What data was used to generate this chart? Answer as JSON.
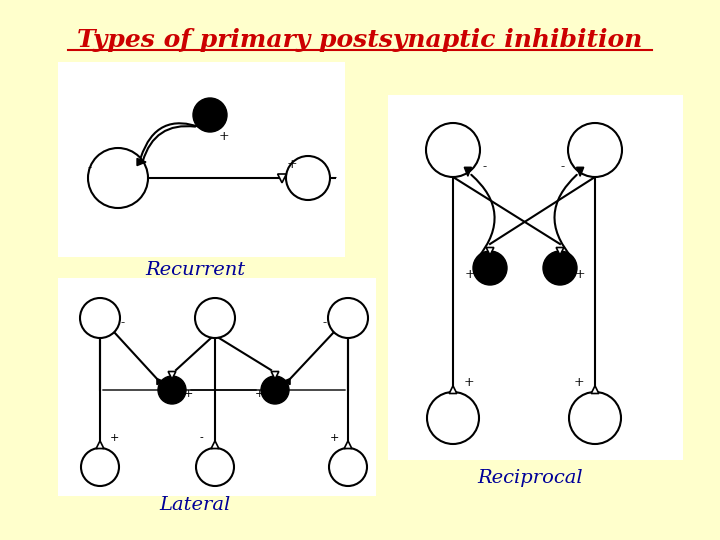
{
  "title": "Types of primary postsynaptic inhibition",
  "title_color": "#cc0000",
  "title_fontsize": 18,
  "bg_color": "#ffffcc",
  "label_recurrent": "Recurrent",
  "label_reciprocal": "Reciprocal",
  "label_lateral": "Lateral",
  "label_color": "#000099",
  "label_fontsize": 14
}
